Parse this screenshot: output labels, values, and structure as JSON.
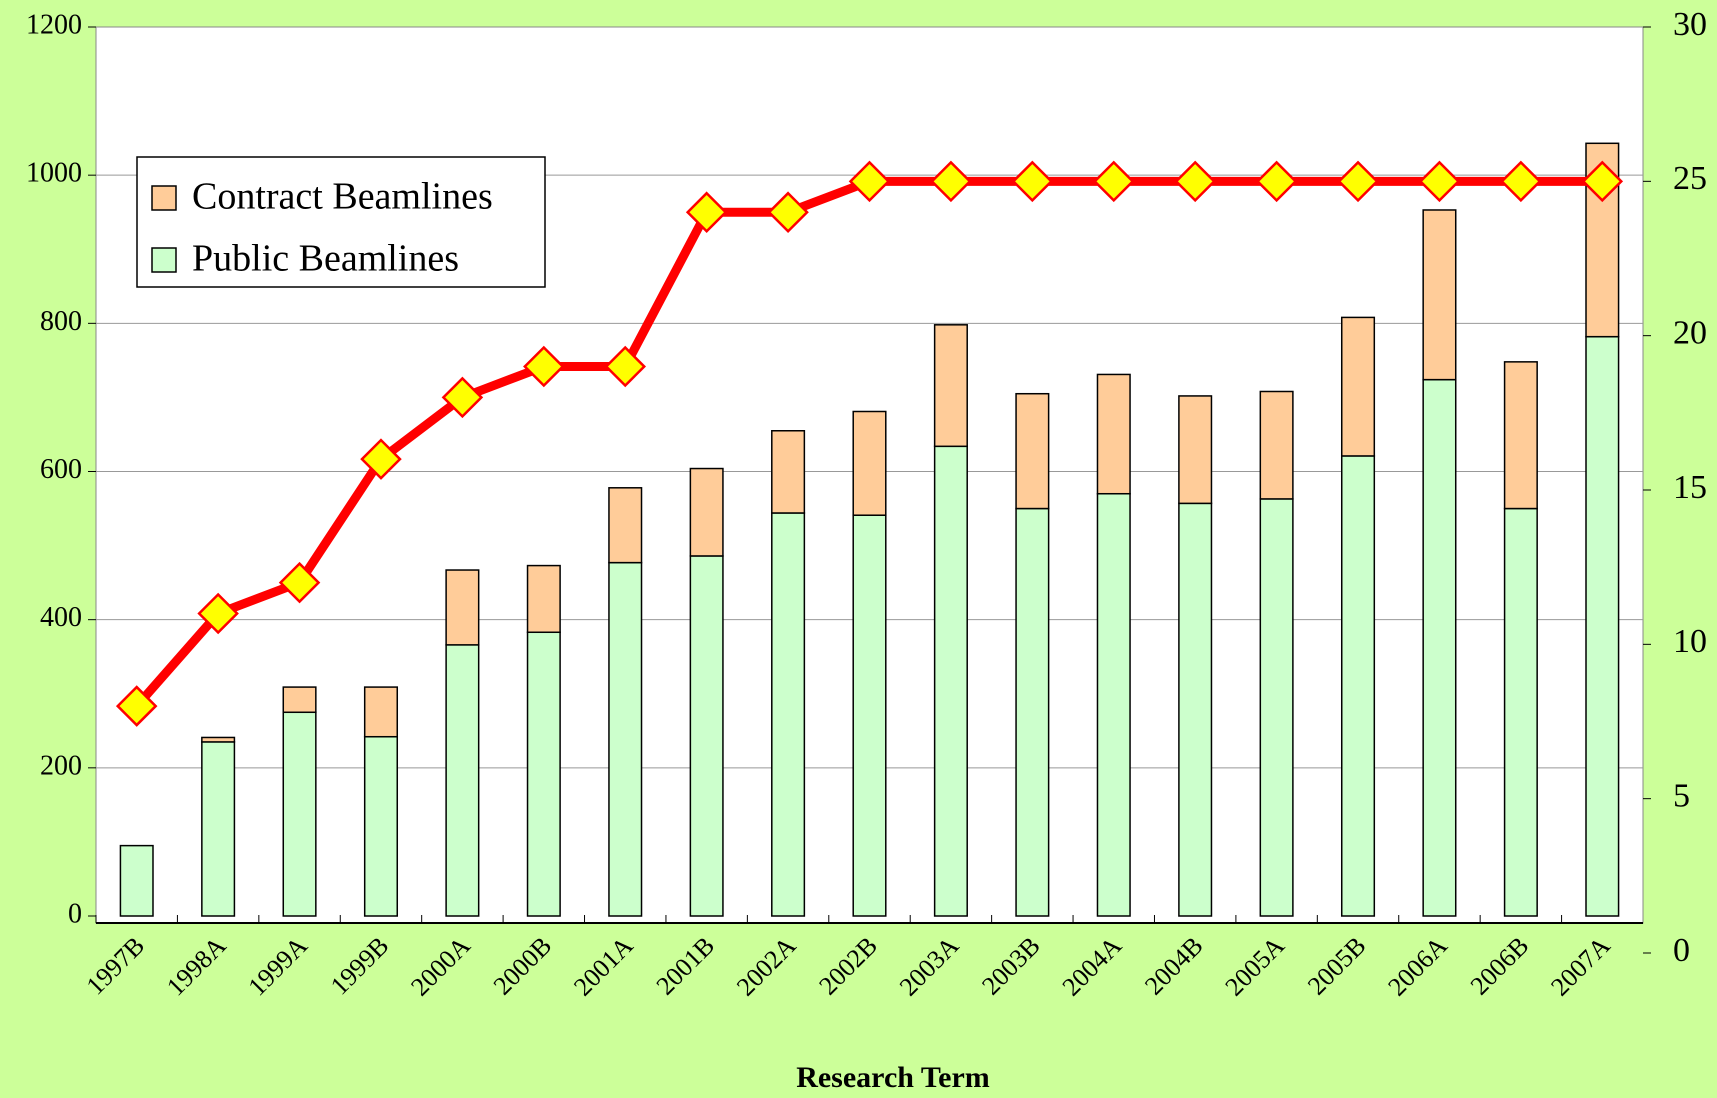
{
  "chart_data": {
    "type": "bar",
    "xlabel": "Research Term",
    "categories": [
      "1997B",
      "1998A",
      "1999A",
      "1999B",
      "2000A",
      "2000B",
      "2001A",
      "2001B",
      "2002A",
      "2002B",
      "2003A",
      "2003B",
      "2004A",
      "2004B",
      "2005A",
      "2005B",
      "2006A",
      "2006B",
      "2007A"
    ],
    "series": [
      {
        "name": "Public Beamlines",
        "type": "bar",
        "color": "#ccffcc",
        "values": [
          95,
          235,
          275,
          242,
          366,
          383,
          477,
          486,
          544,
          541,
          634,
          550,
          570,
          557,
          563,
          621,
          724,
          550,
          782
        ]
      },
      {
        "name": "Contract Beamlines",
        "type": "bar",
        "color": "#ffcc99",
        "values": [
          0,
          6,
          34,
          67,
          101,
          90,
          101,
          118,
          111,
          140,
          164,
          155,
          161,
          145,
          145,
          187,
          229,
          198,
          261
        ]
      },
      {
        "type": "line",
        "axis": "y2",
        "color": "#ff0000",
        "marker_color": "#ffff00",
        "values": [
          8,
          11,
          12,
          16,
          18,
          19,
          19,
          24,
          24,
          25,
          25,
          25,
          25,
          25,
          25,
          25,
          25,
          25,
          25
        ]
      }
    ],
    "stacked": true,
    "ylim": [
      0,
      1200
    ],
    "yticks": [
      0,
      200,
      400,
      600,
      800,
      1000,
      1200
    ],
    "y2lim": [
      0,
      30
    ],
    "y2ticks": [
      0,
      5,
      10,
      15,
      20,
      25,
      30
    ],
    "grid": true,
    "legend": "upper left"
  }
}
